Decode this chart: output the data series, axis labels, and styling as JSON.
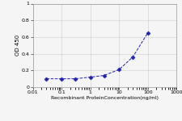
{
  "x": [
    0.03,
    0.1,
    0.3,
    1,
    3,
    10,
    30,
    100
  ],
  "y": [
    0.1,
    0.1,
    0.1,
    0.12,
    0.14,
    0.21,
    0.36,
    0.65
  ],
  "line_color": "#2222aa",
  "marker": "D",
  "marker_size": 2.5,
  "marker_facecolor": "#2222aa",
  "xlabel": "Recombinant ProteinConcentration(ng/ml)",
  "ylabel": "OD 450",
  "xlim": [
    0.01,
    1000
  ],
  "ylim": [
    0,
    1
  ],
  "yticks": [
    0,
    0.2,
    0.4,
    0.6,
    0.8,
    1
  ],
  "xticks": [
    0.01,
    0.1,
    1,
    10,
    100,
    1000
  ],
  "background_color": "#f5f5f5",
  "grid_color": "#cccccc"
}
